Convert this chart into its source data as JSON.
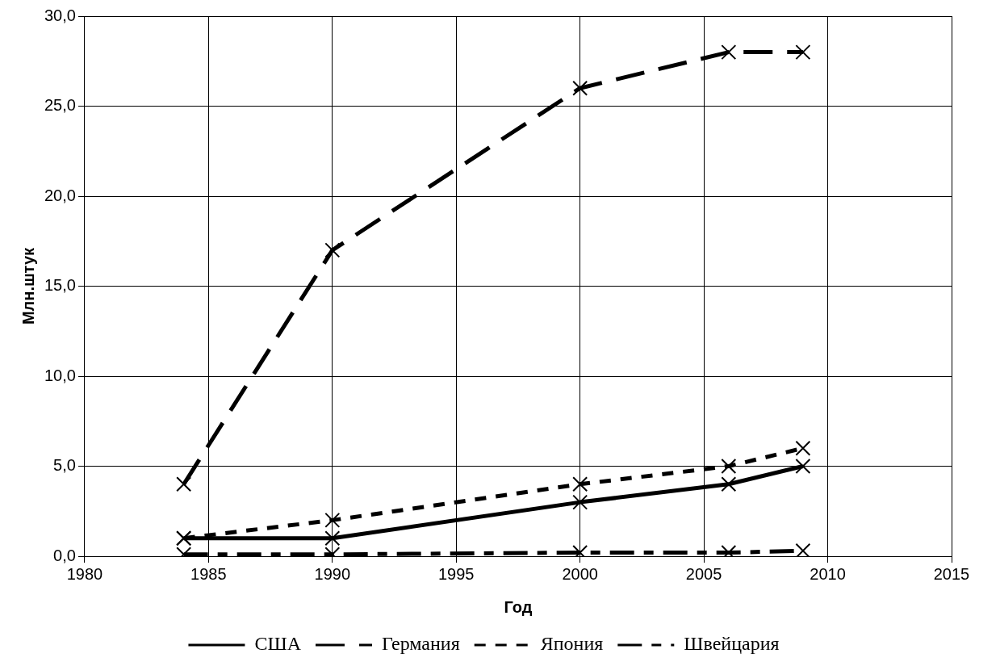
{
  "chart_data": {
    "type": "line",
    "xlabel": "Год",
    "ylabel": "Млн.штук",
    "x": [
      1984,
      1990,
      2000,
      2006,
      2009
    ],
    "series": [
      {
        "name": "США",
        "color": "#000000",
        "line_style": "solid",
        "values": [
          1.0,
          1.0,
          3.0,
          4.0,
          5.0
        ]
      },
      {
        "name": "Германия",
        "color": "#000000",
        "line_style": "dashed",
        "values": [
          4.0,
          17.0,
          26.0,
          28.0,
          28.0
        ]
      },
      {
        "name": "Япония",
        "color": "#000000",
        "line_style": "dotted",
        "values": [
          1.0,
          2.0,
          4.0,
          5.0,
          6.0
        ]
      },
      {
        "name": "Швейцария",
        "color": "#000000",
        "line_style": "dashdot",
        "values": [
          0.1,
          0.1,
          0.2,
          0.2,
          0.3
        ]
      }
    ],
    "xlim": [
      1980,
      2015
    ],
    "xticks": [
      1980,
      1985,
      1990,
      1995,
      2000,
      2005,
      2010,
      2015
    ],
    "ylim": [
      0,
      30
    ],
    "yticks": [
      {
        "value": 0,
        "label": "0,0"
      },
      {
        "value": 5,
        "label": "5,0"
      },
      {
        "value": 10,
        "label": "10,0"
      },
      {
        "value": 15,
        "label": "15,0"
      },
      {
        "value": 20,
        "label": "20,0"
      },
      {
        "value": 25,
        "label": "25,0"
      },
      {
        "value": 30,
        "label": "30,0"
      }
    ],
    "grid": true,
    "legend": "bottom",
    "marker": "cross"
  }
}
